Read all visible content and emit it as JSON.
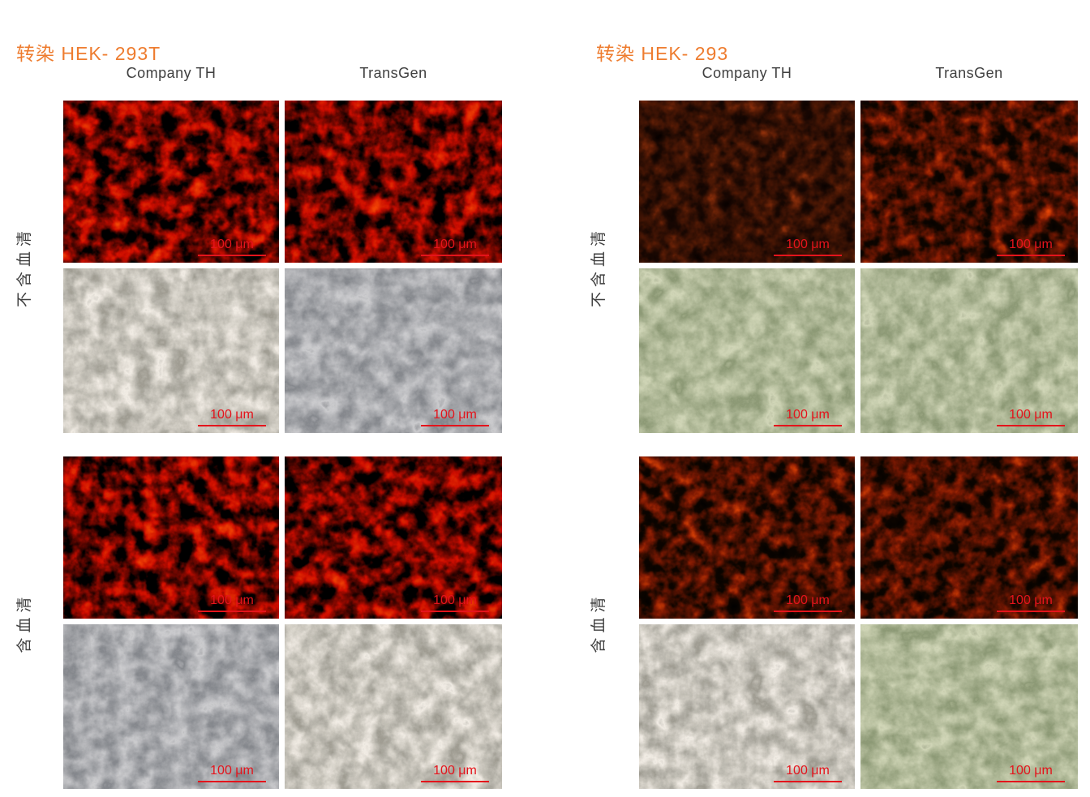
{
  "figure": {
    "scale_bar_label": "100 μm",
    "groups": [
      {
        "title": "转染 HEK- 293T",
        "column_headers": [
          "Company TH",
          "TransGen"
        ],
        "blocks": [
          {
            "row_label": "不含血清"
          },
          {
            "row_label": "含血清"
          }
        ]
      },
      {
        "title": "转染 HEK- 293",
        "column_headers": [
          "Company TH",
          "TransGen"
        ],
        "blocks": [
          {
            "row_label": "不含血清"
          },
          {
            "row_label": "含血清"
          }
        ]
      }
    ],
    "colors": {
      "title": "#EE7C2F",
      "scale_bar": "#E4141C",
      "label_text": "#3F3F3F",
      "background": "#FFFFFF"
    }
  }
}
